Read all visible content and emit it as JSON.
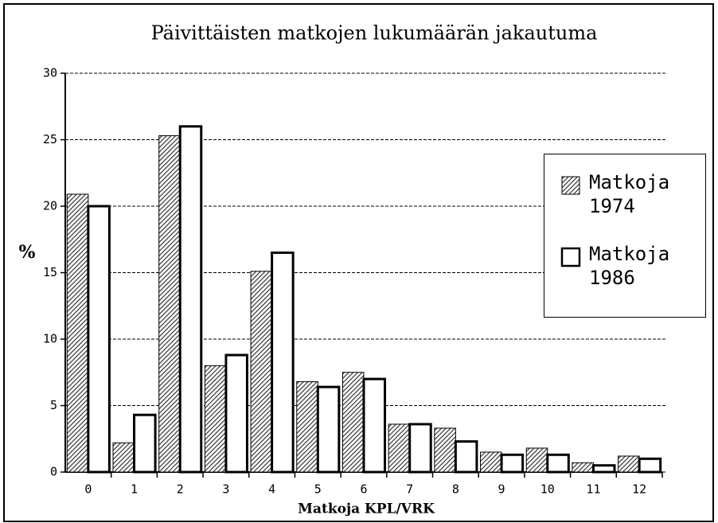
{
  "chart_data": {
    "type": "bar",
    "title": "Päivittäisten matkojen lukumäärän jakautuma",
    "x_label": "Matkoja KPL/VRK",
    "y_label": "%",
    "categories": [
      "0",
      "1",
      "2",
      "3",
      "4",
      "5",
      "6",
      "7",
      "8",
      "9",
      "10",
      "11",
      "12"
    ],
    "series": [
      {
        "name": "Matkoja 1974",
        "color": "#000000",
        "hatch": true,
        "values": [
          20.9,
          2.2,
          25.3,
          8.0,
          15.1,
          6.8,
          7.5,
          3.6,
          3.3,
          1.5,
          1.8,
          0.7,
          1.2
        ]
      },
      {
        "name": "Matkoja 1986",
        "color": "#000000",
        "hatch": false,
        "values": [
          20.0,
          4.3,
          26.0,
          8.8,
          16.5,
          6.4,
          7.0,
          3.6,
          2.3,
          1.3,
          1.3,
          0.5,
          1.0
        ]
      }
    ],
    "ylim": [
      0,
      30
    ],
    "yticks": [
      0,
      5,
      10,
      15,
      20,
      25,
      30
    ],
    "grid": true,
    "legend": "right"
  }
}
